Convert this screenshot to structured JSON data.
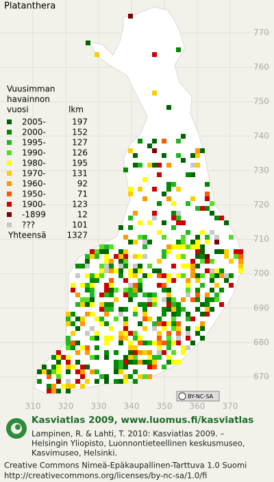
{
  "title": "Platanthera",
  "axes": {
    "y_labels": [
      "770",
      "760",
      "750",
      "740",
      "730",
      "720",
      "710",
      "700",
      "690",
      "680",
      "670"
    ],
    "x_labels": [
      "310",
      "320",
      "330",
      "340",
      "350",
      "360",
      "370"
    ]
  },
  "legend": {
    "heading": [
      "Vuusimman",
      "havainnon"
    ],
    "col_year": "vuosi",
    "col_count": "lkm",
    "items": [
      {
        "label": "2005-",
        "count": 197,
        "color": "#006400"
      },
      {
        "label": "2000-",
        "count": 152,
        "color": "#008a00"
      },
      {
        "label": "1995-",
        "count": 127,
        "color": "#22b822"
      },
      {
        "label": "1990-",
        "count": 126,
        "color": "#55dd22"
      },
      {
        "label": "1980-",
        "count": 195,
        "color": "#ffff00"
      },
      {
        "label": "1970-",
        "count": 131,
        "color": "#ffcc00"
      },
      {
        "label": "1960-",
        "count": 92,
        "color": "#ff9900"
      },
      {
        "label": "1950-",
        "count": 71,
        "color": "#ff5a00"
      },
      {
        "label": "1900-",
        "count": 123,
        "color": "#cc0000"
      },
      {
        "label": "-1899",
        "count": 12,
        "color": "#800000"
      },
      {
        "label": "???",
        "count": 101,
        "color": "#c8c8c8"
      }
    ],
    "total_label": "Yhteensä",
    "total": 1327
  },
  "license_badge": "BY-NC-SA",
  "footer": {
    "headline": "Kasviatlas 2009, www.luomus.fi/kasviatlas",
    "citation": [
      "Lampinen, R. & Lahti, T. 2010: Kasviatlas 2009. –",
      "Helsingin Yliopisto, Luonnontieteellinen keskusmuseo,",
      "Kasvimuseo, Helsinki."
    ],
    "license": [
      "Creative Commons Nimeä-Epäkaupallinen-Tarttuva 1.0 Suomi",
      "http://creativecommons.org/licenses/by-nc-sa/1.0/fi"
    ]
  }
}
